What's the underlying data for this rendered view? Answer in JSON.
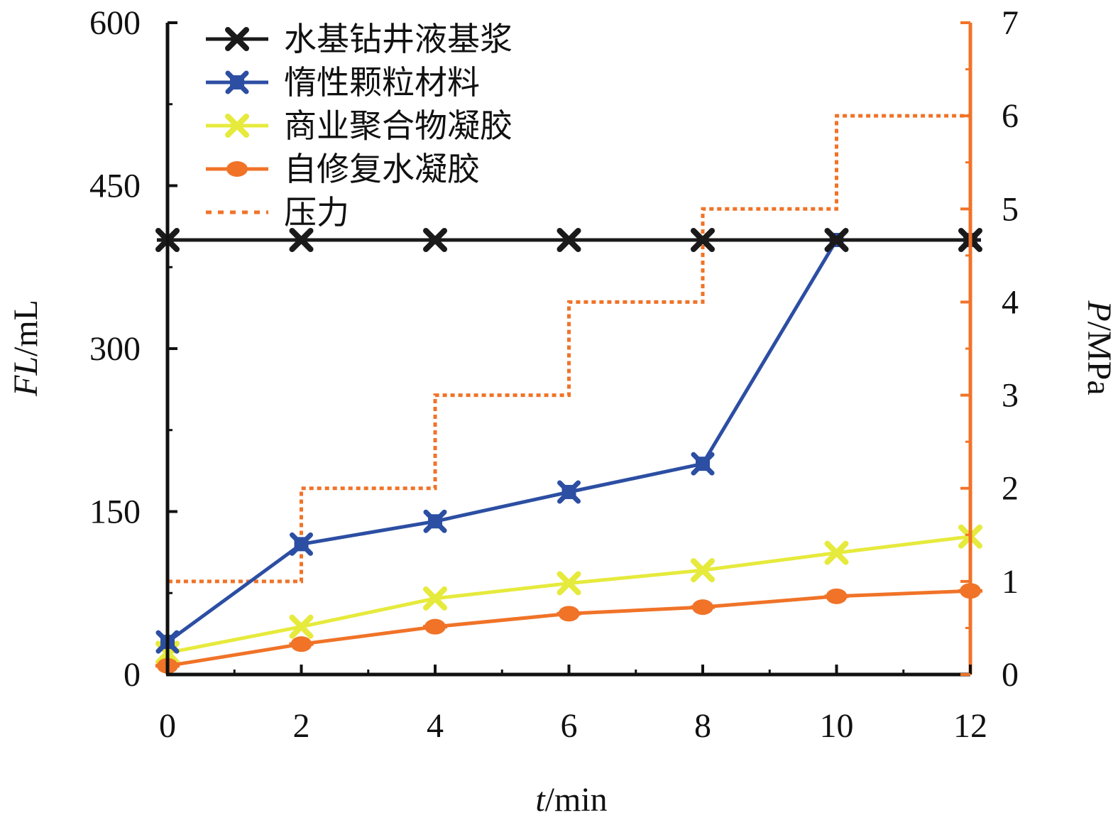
{
  "chart_data": {
    "type": "line",
    "x": [
      0,
      2,
      4,
      6,
      8,
      10,
      12
    ],
    "xlabel_italic": "t",
    "xlabel_rest": "/min",
    "ylabel_italic": "FL",
    "ylabel_rest": "/mL",
    "y2label_italic": "P",
    "y2label_rest": "/MPa",
    "xlim": [
      0,
      12
    ],
    "ylim": [
      0,
      600
    ],
    "y2lim": [
      0,
      7
    ],
    "xticks": [
      "0",
      "2",
      "4",
      "6",
      "8",
      "10",
      "12"
    ],
    "yticks": [
      "0",
      "150",
      "300",
      "450",
      "600"
    ],
    "y2ticks": [
      "0",
      "1",
      "2",
      "3",
      "4",
      "5",
      "6",
      "7"
    ],
    "legend_position": "top-left",
    "series": [
      {
        "name": "水基钻井液基浆",
        "axis": "left",
        "color": "#1a1a1a",
        "marker": "x-star",
        "values": [
          400,
          400,
          400,
          400,
          400,
          400,
          400
        ]
      },
      {
        "name": "惰性颗粒材料",
        "axis": "left",
        "color": "#2c4ea3",
        "marker": "x-square",
        "values": [
          30,
          120,
          141,
          168,
          194,
          400,
          400
        ]
      },
      {
        "name": "商业聚合物凝胶",
        "axis": "left",
        "color": "#e6ea3c",
        "marker": "x",
        "values": [
          20,
          44,
          70,
          84,
          96,
          112,
          127
        ]
      },
      {
        "name": "自修复水凝胶",
        "axis": "left",
        "color": "#f07328",
        "marker": "circle",
        "values": [
          8,
          28,
          44,
          56,
          62,
          72,
          77
        ]
      },
      {
        "name": "压力",
        "axis": "right",
        "color": "#f07328",
        "style": "dotted-step",
        "values": [
          1,
          2,
          3,
          4,
          5,
          6,
          6
        ]
      }
    ]
  }
}
